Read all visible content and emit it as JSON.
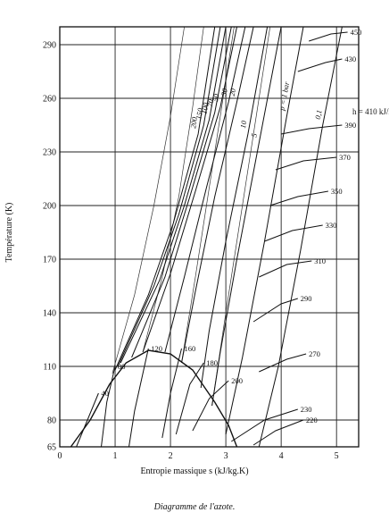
{
  "caption": "Diagramme de l'azote.",
  "chart_data": {
    "type": "line",
    "title": "",
    "xlabel": "Entropie massique s (kJ/kg.K)",
    "ylabel": "Température (K)",
    "xlim": [
      0,
      5.4
    ],
    "ylim": [
      65,
      300
    ],
    "x_ticks": [
      0,
      1,
      2,
      3,
      4,
      5
    ],
    "y_ticks": [
      65,
      80,
      110,
      140,
      170,
      200,
      230,
      260,
      290
    ],
    "grid": true,
    "saturation_dome": [
      [
        0.2,
        65
      ],
      [
        0.55,
        80
      ],
      [
        0.9,
        100
      ],
      [
        1.2,
        112
      ],
      [
        1.6,
        119
      ],
      [
        2.0,
        117
      ],
      [
        2.4,
        108
      ],
      [
        2.8,
        90
      ],
      [
        3.05,
        77
      ],
      [
        3.2,
        65
      ]
    ],
    "isobars": {
      "label_unit_text": "p = 1 bar",
      "labels": [
        "200",
        "150",
        "100",
        "70",
        "50",
        "30",
        "20",
        "10",
        "5",
        "1",
        "0,1"
      ],
      "lines": [
        {
          "label": "200",
          "points": [
            [
              1.0,
              108
            ],
            [
              1.6,
              150
            ],
            [
              2.05,
              190
            ],
            [
              2.5,
              240
            ],
            [
              2.8,
              300
            ]
          ]
        },
        {
          "label": "150",
          "points": [
            [
              1.05,
              110
            ],
            [
              1.7,
              155
            ],
            [
              2.15,
              195
            ],
            [
              2.6,
              245
            ],
            [
              2.9,
              300
            ]
          ]
        },
        {
          "label": "100",
          "points": [
            [
              1.1,
              112
            ],
            [
              1.8,
              158
            ],
            [
              2.25,
              200
            ],
            [
              2.7,
              248
            ],
            [
              3.0,
              300
            ]
          ]
        },
        {
          "label": "70",
          "points": [
            [
              1.3,
              115
            ],
            [
              1.9,
              160
            ],
            [
              2.35,
              205
            ],
            [
              2.8,
              252
            ],
            [
              3.1,
              300
            ]
          ]
        },
        {
          "label": "50",
          "points": [
            [
              1.5,
              118
            ],
            [
              2.0,
              162
            ],
            [
              2.45,
              208
            ],
            [
              2.9,
              255
            ],
            [
              3.2,
              300
            ]
          ]
        },
        {
          "label": "30",
          "points": [
            [
              1.9,
              118
            ],
            [
              2.25,
              160
            ],
            [
              2.65,
              210
            ],
            [
              3.05,
              258
            ],
            [
              3.35,
              300
            ]
          ]
        },
        {
          "label": "20",
          "points": [
            [
              2.2,
              112
            ],
            [
              2.45,
              152
            ],
            [
              2.8,
              205
            ],
            [
              3.2,
              258
            ],
            [
              3.5,
              300
            ]
          ]
        },
        {
          "label": "10",
          "points": [
            [
              2.55,
              98
            ],
            [
              2.7,
              130
            ],
            [
              3.0,
              180
            ],
            [
              3.4,
              240
            ],
            [
              3.75,
              300
            ]
          ]
        },
        {
          "label": "5",
          "points": [
            [
              2.75,
              88
            ],
            [
              2.9,
              118
            ],
            [
              3.2,
              170
            ],
            [
              3.6,
              235
            ],
            [
              4.0,
              300
            ]
          ]
        },
        {
          "label": "1",
          "points": [
            [
              3.0,
              72
            ],
            [
              3.3,
              115
            ],
            [
              3.7,
              180
            ],
            [
              4.1,
              250
            ],
            [
              4.4,
              300
            ]
          ]
        },
        {
          "label": "0,1",
          "points": [
            [
              3.6,
              65
            ],
            [
              3.95,
              110
            ],
            [
              4.35,
              175
            ],
            [
              4.75,
              245
            ],
            [
              5.1,
              300
            ]
          ]
        }
      ]
    },
    "isenthalps": {
      "unit": "h = 410 kJ/hg",
      "labels": [
        "40",
        "80",
        "120",
        "160",
        "180",
        "200",
        "220",
        "230",
        "270",
        "290",
        "310",
        "330",
        "350",
        "370",
        "390",
        "430",
        "450"
      ],
      "lines": [
        {
          "label": "40",
          "points": [
            [
              0.3,
              65
            ],
            [
              0.5,
              80
            ],
            [
              0.7,
              95
            ]
          ]
        },
        {
          "label": "80",
          "points": [
            [
              0.75,
              65
            ],
            [
              0.85,
              90
            ],
            [
              1.0,
              110
            ]
          ]
        },
        {
          "label": "120",
          "points": [
            [
              1.25,
              65
            ],
            [
              1.35,
              85
            ],
            [
              1.6,
              120
            ]
          ]
        },
        {
          "label": "160",
          "points": [
            [
              1.85,
              70
            ],
            [
              2.0,
              95
            ],
            [
              2.2,
              120
            ]
          ]
        },
        {
          "label": "180",
          "points": [
            [
              2.1,
              72
            ],
            [
              2.35,
              100
            ],
            [
              2.6,
              112
            ]
          ]
        },
        {
          "label": "200",
          "points": [
            [
              2.4,
              74
            ],
            [
              2.7,
              92
            ],
            [
              3.05,
              102
            ]
          ]
        },
        {
          "label": "220",
          "points": [
            [
              3.5,
              66
            ],
            [
              3.9,
              74
            ],
            [
              4.4,
              80
            ]
          ]
        },
        {
          "label": "230",
          "points": [
            [
              3.1,
              68
            ],
            [
              3.7,
              80
            ],
            [
              4.3,
              86
            ]
          ]
        },
        {
          "label": "270",
          "points": [
            [
              3.6,
              107
            ],
            [
              4.1,
              114
            ],
            [
              4.45,
              117
            ]
          ]
        },
        {
          "label": "290",
          "points": [
            [
              3.5,
              135
            ],
            [
              4.0,
              145
            ],
            [
              4.3,
              148
            ]
          ]
        },
        {
          "label": "310",
          "points": [
            [
              3.6,
              160
            ],
            [
              4.1,
              167
            ],
            [
              4.55,
              169
            ]
          ]
        },
        {
          "label": "330",
          "points": [
            [
              3.7,
              180
            ],
            [
              4.2,
              186
            ],
            [
              4.75,
              189
            ]
          ]
        },
        {
          "label": "350",
          "points": [
            [
              3.8,
              200
            ],
            [
              4.3,
              205
            ],
            [
              4.85,
              208
            ]
          ]
        },
        {
          "label": "370",
          "points": [
            [
              3.9,
              220
            ],
            [
              4.4,
              225
            ],
            [
              5.0,
              227
            ]
          ]
        },
        {
          "label": "390",
          "points": [
            [
              4.0,
              240
            ],
            [
              4.5,
              243
            ],
            [
              5.1,
              245
            ]
          ]
        },
        {
          "label": "430",
          "points": [
            [
              4.3,
              275
            ],
            [
              4.8,
              280
            ],
            [
              5.1,
              282
            ]
          ]
        },
        {
          "label": "450",
          "points": [
            [
              4.5,
              292
            ],
            [
              4.9,
              296
            ],
            [
              5.2,
              297
            ]
          ]
        }
      ]
    },
    "isochores": [
      [
        [
          0.95,
          106
        ],
        [
          1.35,
          150
        ],
        [
          1.7,
          200
        ],
        [
          2.0,
          250
        ],
        [
          2.25,
          300
        ]
      ],
      [
        [
          1.5,
          118
        ],
        [
          1.85,
          160
        ],
        [
          2.15,
          205
        ],
        [
          2.4,
          255
        ],
        [
          2.6,
          300
        ]
      ],
      [
        [
          2.2,
          112
        ],
        [
          2.45,
          160
        ],
        [
          2.7,
          210
        ],
        [
          2.95,
          260
        ],
        [
          3.15,
          300
        ]
      ],
      [
        [
          2.75,
          88
        ],
        [
          3.0,
          140
        ],
        [
          3.3,
          200
        ],
        [
          3.6,
          260
        ],
        [
          3.8,
          300
        ]
      ]
    ]
  }
}
